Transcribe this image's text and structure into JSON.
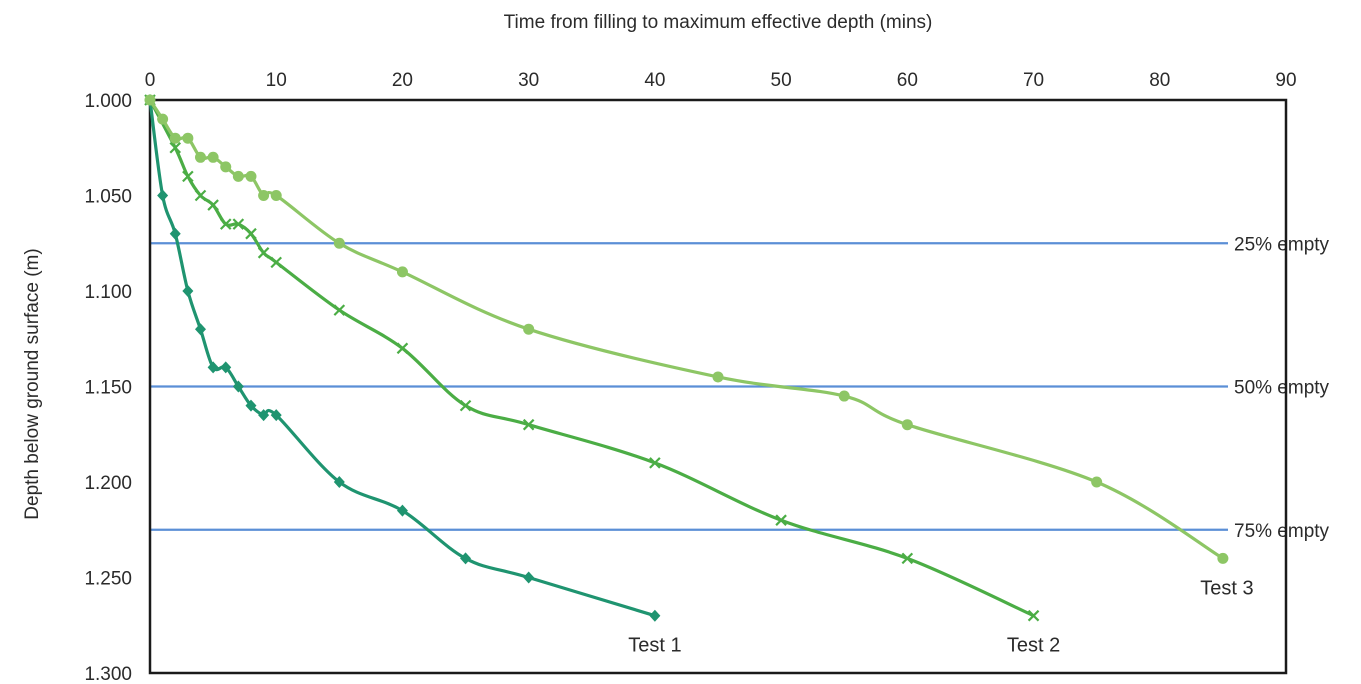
{
  "chart_data": {
    "type": "line",
    "title": "",
    "xlabel": "Time from filling to maximum effective depth (mins)",
    "ylabel": "Depth below ground surface (m)",
    "x_axis_position": "top",
    "y_axis_inverted": true,
    "xlim": [
      0,
      90
    ],
    "ylim": [
      1.0,
      1.3
    ],
    "x_ticks": [
      0,
      10,
      20,
      30,
      40,
      50,
      60,
      70,
      80,
      90
    ],
    "x_tick_labels": [
      "0",
      "10",
      "20",
      "30",
      "40",
      "50",
      "60",
      "70",
      "80",
      "90"
    ],
    "y_ticks": [
      1.0,
      1.05,
      1.1,
      1.15,
      1.2,
      1.25,
      1.3
    ],
    "y_tick_labels": [
      "1.000",
      "1.050",
      "1.100",
      "1.150",
      "1.200",
      "1.250",
      "1.300"
    ],
    "grid": false,
    "reference_lines": [
      {
        "y": 1.075,
        "label": "25% empty",
        "color": "#5b8fd6"
      },
      {
        "y": 1.15,
        "label": "50% empty",
        "color": "#5b8fd6"
      },
      {
        "y": 1.225,
        "label": "75% empty",
        "color": "#5b8fd6"
      }
    ],
    "series": [
      {
        "name": "Test 1",
        "color": "#1f9470",
        "marker": "diamond",
        "x": [
          0,
          1,
          2,
          3,
          4,
          5,
          6,
          7,
          8,
          9,
          10,
          15,
          20,
          25,
          30,
          40
        ],
        "y": [
          1.0,
          1.05,
          1.07,
          1.1,
          1.12,
          1.14,
          1.14,
          1.15,
          1.16,
          1.165,
          1.165,
          1.2,
          1.215,
          1.24,
          1.25,
          1.27
        ]
      },
      {
        "name": "Test 2",
        "color": "#4bad45",
        "marker": "x",
        "x": [
          0,
          2,
          3,
          4,
          5,
          6,
          7,
          8,
          9,
          10,
          15,
          20,
          25,
          30,
          40,
          50,
          60,
          70
        ],
        "y": [
          1.0,
          1.025,
          1.04,
          1.05,
          1.055,
          1.065,
          1.065,
          1.07,
          1.08,
          1.085,
          1.11,
          1.13,
          1.16,
          1.17,
          1.19,
          1.22,
          1.24,
          1.27
        ]
      },
      {
        "name": "Test 3",
        "color": "#8dc665",
        "marker": "circle",
        "x": [
          0,
          1,
          2,
          3,
          4,
          5,
          6,
          7,
          8,
          9,
          10,
          15,
          20,
          30,
          45,
          55,
          60,
          75,
          85
        ],
        "y": [
          1.0,
          1.01,
          1.02,
          1.02,
          1.03,
          1.03,
          1.035,
          1.04,
          1.04,
          1.05,
          1.05,
          1.075,
          1.09,
          1.12,
          1.145,
          1.155,
          1.17,
          1.2,
          1.24
        ]
      }
    ]
  }
}
